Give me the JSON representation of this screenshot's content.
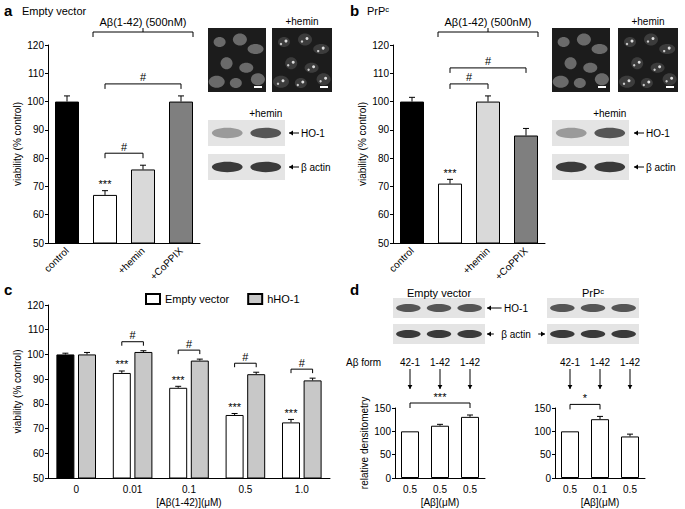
{
  "chart_data": [
    {
      "type": "bar",
      "panel_label": "a",
      "title": "Empty vector",
      "ylabel": "viability (% control)",
      "categories": [
        "control",
        null,
        "+hemin",
        "+CoPPIX"
      ],
      "values": [
        100,
        67,
        76,
        100
      ],
      "errors": [
        2,
        1.5,
        1.5,
        2
      ],
      "colors": [
        "#000000",
        "#ffffff",
        "#d9d9d9",
        "#7f7f7f"
      ],
      "marks": [
        null,
        "***",
        null,
        null
      ],
      "comparisons": [
        {
          "between": [
            1,
            2
          ],
          "label": "#"
        },
        {
          "between": [
            1,
            3
          ],
          "label": "#"
        }
      ],
      "annotation": {
        "text": "Aβ(1-42) (500nM)",
        "between": [
          1,
          3
        ]
      },
      "ylim": [
        50,
        120
      ],
      "yticks": [
        50,
        60,
        70,
        80,
        90,
        100,
        110,
        120
      ],
      "grid": false,
      "micrograph_label": "+hemin",
      "blot_label": "+hemin",
      "blot_bands": [
        "HO-1",
        "β actin"
      ]
    },
    {
      "type": "bar",
      "panel_label": "b",
      "title": "PrPᶜ",
      "ylabel": "viability (% control)",
      "categories": [
        "control",
        null,
        "+hemin",
        "+CoPPIX"
      ],
      "values": [
        100,
        71,
        100,
        88
      ],
      "errors": [
        1.5,
        1.5,
        2,
        2.5
      ],
      "colors": [
        "#000000",
        "#ffffff",
        "#d9d9d9",
        "#7f7f7f"
      ],
      "marks": [
        null,
        "***",
        null,
        null
      ],
      "comparisons": [
        {
          "between": [
            1,
            2
          ],
          "label": "#"
        },
        {
          "between": [
            1,
            3
          ],
          "label": "#"
        }
      ],
      "annotation": {
        "text": "Aβ(1-42) (500nM)",
        "between": [
          1,
          3
        ]
      },
      "ylim": [
        50,
        120
      ],
      "yticks": [
        50,
        60,
        70,
        80,
        90,
        100,
        110,
        120
      ],
      "grid": false,
      "micrograph_label": "+hemin",
      "blot_label": "+hemin",
      "blot_bands": [
        "HO-1",
        "β actin"
      ]
    },
    {
      "type": "bar",
      "panel_label": "c",
      "ylabel": "viability (% control)",
      "xlabel": "[Aβ(1-42)](μM)",
      "categories": [
        "0",
        "0.01",
        "0.1",
        "0.5",
        "1.0"
      ],
      "series": [
        {
          "name": "Empty vector",
          "color": "#ffffff",
          "colors": [
            "#000000",
            "#ffffff",
            "#ffffff",
            "#ffffff",
            "#ffffff"
          ],
          "values": [
            100,
            92.5,
            86.5,
            75.5,
            72.5
          ],
          "errors": [
            0.5,
            0.8,
            0.6,
            0.6,
            1.2
          ],
          "marks": [
            null,
            "***",
            "***",
            "***",
            "***"
          ]
        },
        {
          "name": "hHO-1",
          "color": "#c8c8c8",
          "values": [
            100,
            101,
            97.5,
            92,
            89.5
          ],
          "errors": [
            0.8,
            0.5,
            0.6,
            0.8,
            0.9
          ]
        }
      ],
      "comparisons": [
        {
          "category": 1,
          "label": "#"
        },
        {
          "category": 2,
          "label": "#"
        },
        {
          "category": 3,
          "label": "#"
        },
        {
          "category": 4,
          "label": "#"
        }
      ],
      "legend": "top",
      "ylim": [
        50,
        120
      ],
      "yticks": [
        50,
        60,
        70,
        80,
        90,
        100,
        110,
        120
      ],
      "grid": false
    },
    {
      "type": "bar",
      "panel_label": "d",
      "title": "Empty vector",
      "ylabel": "relative densitometry",
      "xlabel": "[Aβ](μM)",
      "categories": [
        "0.5",
        "0.5",
        "0.5"
      ],
      "forms_label": "Aβ form",
      "forms": [
        "42-1",
        "1-42",
        "1-42"
      ],
      "values": [
        100,
        112,
        131
      ],
      "errors": [
        null,
        3,
        4
      ],
      "color": "#ffffff",
      "comparisons": [
        {
          "between": [
            0,
            2
          ],
          "label": "***"
        }
      ],
      "ylim": [
        0,
        150
      ],
      "yticks": [
        0,
        50,
        100,
        150
      ],
      "grid": false,
      "blot_bands": [
        "HO-1",
        "β actin"
      ]
    },
    {
      "type": "bar",
      "title": "PrPᶜ",
      "xlabel": "[Aβ](μM)",
      "categories": [
        "0.5",
        "0.1",
        "0.5"
      ],
      "forms": [
        "42-1",
        "1-42",
        "1-42"
      ],
      "values": [
        100,
        126,
        89
      ],
      "errors": [
        null,
        6,
        5
      ],
      "color": "#ffffff",
      "comparisons": [
        {
          "between": [
            0,
            1
          ],
          "label": "*"
        }
      ],
      "ylim": [
        0,
        150
      ],
      "yticks": [
        0,
        50,
        100,
        150
      ],
      "grid": false
    }
  ]
}
